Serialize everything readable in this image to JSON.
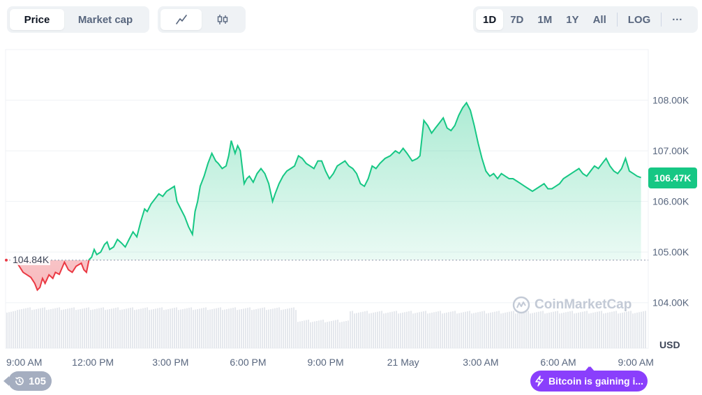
{
  "controls": {
    "type_tabs": [
      {
        "label": "Price",
        "active": true
      },
      {
        "label": "Market cap",
        "active": false
      }
    ],
    "style_icons": [
      "line-chart-icon",
      "candlestick-icon"
    ],
    "range_tabs": [
      {
        "label": "1D",
        "active": true
      },
      {
        "label": "7D",
        "active": false
      },
      {
        "label": "1M",
        "active": false
      },
      {
        "label": "1Y",
        "active": false
      },
      {
        "label": "All",
        "active": false
      }
    ],
    "scale_label": "LOG",
    "more_label": "···"
  },
  "chart_data": {
    "type": "area",
    "title": "",
    "xlabel": "",
    "ylabel": "",
    "currency_label": "USD",
    "y_ticks": [
      {
        "value": 104000,
        "label": "104.00K"
      },
      {
        "value": 105000,
        "label": "105.00K"
      },
      {
        "value": 106000,
        "label": "106.00K"
      },
      {
        "value": 107000,
        "label": "107.00K"
      },
      {
        "value": 108000,
        "label": "108.00K"
      }
    ],
    "ylim": [
      103100,
      109000
    ],
    "x_range_hours": [
      0,
      24.4
    ],
    "x_ticks": [
      {
        "hour": 0,
        "label": "9:00 AM"
      },
      {
        "hour": 3,
        "label": "12:00 PM"
      },
      {
        "hour": 6,
        "label": "3:00 PM"
      },
      {
        "hour": 9,
        "label": "6:00 PM"
      },
      {
        "hour": 12,
        "label": "9:00 PM"
      },
      {
        "hour": 15,
        "label": "21 May"
      },
      {
        "hour": 18,
        "label": "3:00 AM"
      },
      {
        "hour": 21,
        "label": "6:00 AM"
      },
      {
        "hour": 24,
        "label": "9:00 AM"
      }
    ],
    "open_price": 104840,
    "open_label": "104.84K",
    "current_price": 106470,
    "current_label": "106.47K",
    "colors": {
      "up": "#16c784",
      "down": "#ea3943",
      "fill_top": "#b4ecd3"
    },
    "points": [
      [
        0.0,
        104840
      ],
      [
        0.15,
        104720
      ],
      [
        0.3,
        104600
      ],
      [
        0.45,
        104550
      ],
      [
        0.6,
        104500
      ],
      [
        0.75,
        104380
      ],
      [
        0.85,
        104250
      ],
      [
        0.95,
        104300
      ],
      [
        1.05,
        104480
      ],
      [
        1.15,
        104380
      ],
      [
        1.3,
        104550
      ],
      [
        1.45,
        104480
      ],
      [
        1.55,
        104600
      ],
      [
        1.7,
        104560
      ],
      [
        1.9,
        104800
      ],
      [
        2.05,
        104650
      ],
      [
        2.2,
        104600
      ],
      [
        2.35,
        104720
      ],
      [
        2.55,
        104780
      ],
      [
        2.65,
        104650
      ],
      [
        2.75,
        104600
      ],
      [
        2.85,
        104850
      ],
      [
        2.95,
        104900
      ],
      [
        3.05,
        105050
      ],
      [
        3.15,
        104950
      ],
      [
        3.3,
        105000
      ],
      [
        3.45,
        105150
      ],
      [
        3.55,
        105200
      ],
      [
        3.65,
        105050
      ],
      [
        3.8,
        105100
      ],
      [
        3.95,
        105250
      ],
      [
        4.1,
        105180
      ],
      [
        4.25,
        105100
      ],
      [
        4.4,
        105250
      ],
      [
        4.55,
        105400
      ],
      [
        4.7,
        105300
      ],
      [
        4.85,
        105600
      ],
      [
        5.0,
        105850
      ],
      [
        5.1,
        105800
      ],
      [
        5.25,
        105950
      ],
      [
        5.4,
        106050
      ],
      [
        5.55,
        106150
      ],
      [
        5.7,
        106100
      ],
      [
        5.85,
        106200
      ],
      [
        6.0,
        106250
      ],
      [
        6.15,
        106300
      ],
      [
        6.25,
        106000
      ],
      [
        6.4,
        105850
      ],
      [
        6.55,
        105700
      ],
      [
        6.7,
        105500
      ],
      [
        6.85,
        105350
      ],
      [
        6.95,
        105800
      ],
      [
        7.05,
        106000
      ],
      [
        7.15,
        106300
      ],
      [
        7.3,
        106500
      ],
      [
        7.45,
        106750
      ],
      [
        7.6,
        106950
      ],
      [
        7.75,
        106800
      ],
      [
        7.85,
        106750
      ],
      [
        8.0,
        106650
      ],
      [
        8.15,
        106700
      ],
      [
        8.25,
        106900
      ],
      [
        8.35,
        107200
      ],
      [
        8.5,
        106950
      ],
      [
        8.6,
        107100
      ],
      [
        8.7,
        107000
      ],
      [
        8.85,
        106350
      ],
      [
        8.95,
        106450
      ],
      [
        9.05,
        106500
      ],
      [
        9.2,
        106380
      ],
      [
        9.35,
        106550
      ],
      [
        9.5,
        106650
      ],
      [
        9.65,
        106550
      ],
      [
        9.8,
        106350
      ],
      [
        9.95,
        106000
      ],
      [
        10.05,
        106150
      ],
      [
        10.2,
        106350
      ],
      [
        10.35,
        106500
      ],
      [
        10.5,
        106600
      ],
      [
        10.65,
        106650
      ],
      [
        10.8,
        106700
      ],
      [
        10.95,
        106900
      ],
      [
        11.1,
        106850
      ],
      [
        11.25,
        106750
      ],
      [
        11.4,
        106700
      ],
      [
        11.55,
        106650
      ],
      [
        11.7,
        106800
      ],
      [
        11.85,
        106800
      ],
      [
        12.0,
        106600
      ],
      [
        12.15,
        106450
      ],
      [
        12.3,
        106550
      ],
      [
        12.45,
        106700
      ],
      [
        12.6,
        106750
      ],
      [
        12.75,
        106800
      ],
      [
        12.9,
        106700
      ],
      [
        13.05,
        106650
      ],
      [
        13.2,
        106550
      ],
      [
        13.35,
        106350
      ],
      [
        13.5,
        106300
      ],
      [
        13.65,
        106450
      ],
      [
        13.8,
        106700
      ],
      [
        13.95,
        106650
      ],
      [
        14.1,
        106750
      ],
      [
        14.3,
        106850
      ],
      [
        14.5,
        106900
      ],
      [
        14.7,
        107000
      ],
      [
        14.85,
        106950
      ],
      [
        15.0,
        107050
      ],
      [
        15.15,
        106950
      ],
      [
        15.35,
        106800
      ],
      [
        15.55,
        106850
      ],
      [
        15.65,
        106900
      ],
      [
        15.8,
        107600
      ],
      [
        15.95,
        107500
      ],
      [
        16.1,
        107350
      ],
      [
        16.25,
        107450
      ],
      [
        16.4,
        107550
      ],
      [
        16.55,
        107650
      ],
      [
        16.7,
        107450
      ],
      [
        16.85,
        107400
      ],
      [
        17.0,
        107500
      ],
      [
        17.15,
        107700
      ],
      [
        17.3,
        107850
      ],
      [
        17.45,
        107950
      ],
      [
        17.6,
        107800
      ],
      [
        17.75,
        107500
      ],
      [
        17.9,
        107150
      ],
      [
        18.05,
        106850
      ],
      [
        18.2,
        106600
      ],
      [
        18.35,
        106500
      ],
      [
        18.5,
        106550
      ],
      [
        18.65,
        106450
      ],
      [
        18.8,
        106550
      ],
      [
        18.95,
        106500
      ],
      [
        19.1,
        106450
      ],
      [
        19.25,
        106450
      ],
      [
        19.4,
        106400
      ],
      [
        19.55,
        106350
      ],
      [
        19.7,
        106300
      ],
      [
        19.85,
        106250
      ],
      [
        20.0,
        106200
      ],
      [
        20.15,
        106250
      ],
      [
        20.3,
        106300
      ],
      [
        20.45,
        106350
      ],
      [
        20.6,
        106250
      ],
      [
        20.75,
        106250
      ],
      [
        20.9,
        106300
      ],
      [
        21.05,
        106350
      ],
      [
        21.2,
        106450
      ],
      [
        21.35,
        106500
      ],
      [
        21.5,
        106550
      ],
      [
        21.65,
        106600
      ],
      [
        21.8,
        106650
      ],
      [
        21.95,
        106550
      ],
      [
        22.1,
        106500
      ],
      [
        22.25,
        106600
      ],
      [
        22.4,
        106700
      ],
      [
        22.55,
        106650
      ],
      [
        22.7,
        106750
      ],
      [
        22.85,
        106850
      ],
      [
        23.0,
        106700
      ],
      [
        23.15,
        106600
      ],
      [
        23.3,
        106550
      ],
      [
        23.45,
        106650
      ],
      [
        23.6,
        106850
      ],
      [
        23.75,
        106600
      ],
      [
        23.9,
        106550
      ],
      [
        24.05,
        106500
      ],
      [
        24.2,
        106470
      ]
    ],
    "volume_segments": [
      {
        "from": 0,
        "to": 10.9,
        "level": 0.93
      },
      {
        "from": 10.9,
        "to": 12.9,
        "level": 0.65
      },
      {
        "from": 12.9,
        "to": 24.4,
        "level": 0.85
      }
    ]
  },
  "watermark": {
    "text": "CoinMarketCap"
  },
  "history": {
    "count": "105"
  },
  "news": {
    "text": "Bitcoin is gaining i..."
  }
}
